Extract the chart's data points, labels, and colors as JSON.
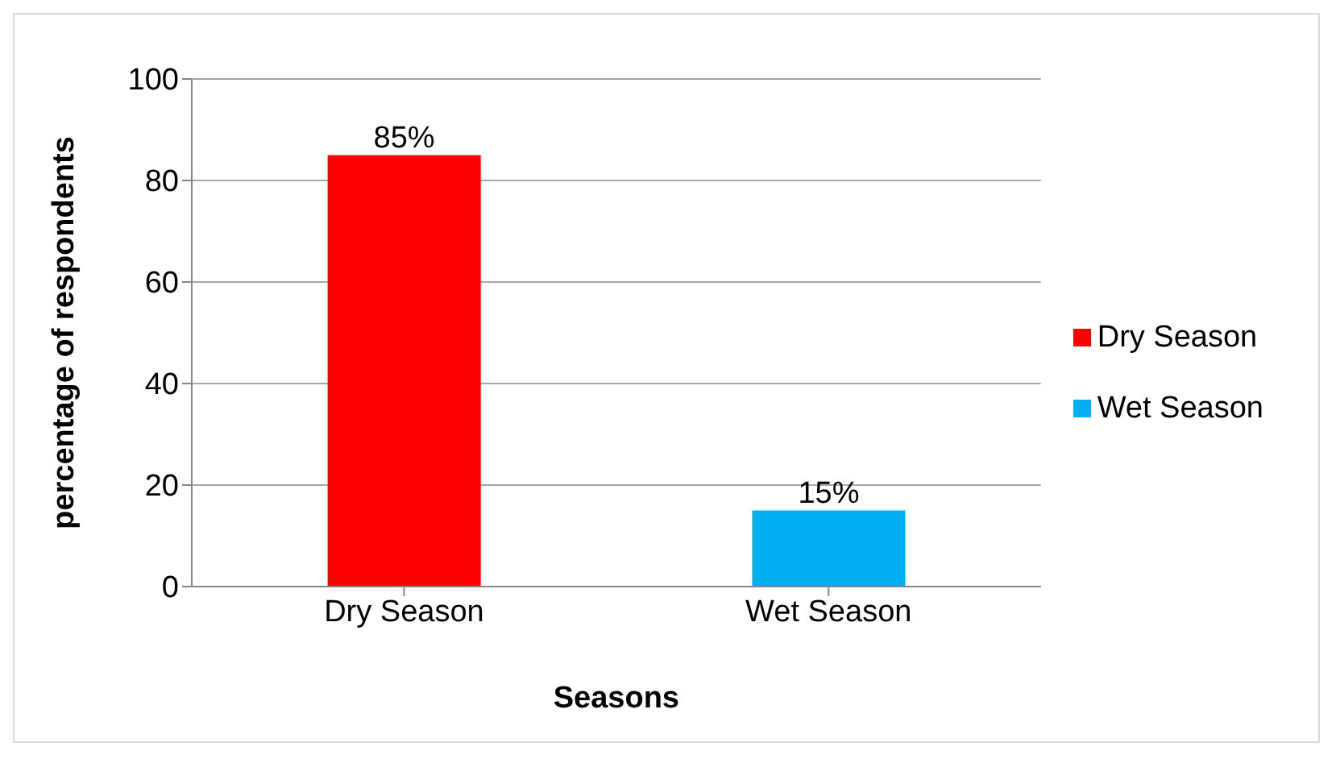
{
  "chart_data": {
    "type": "bar",
    "xlabel": "Seasons",
    "ylabel": "percentage of respondents",
    "categories": [
      "Dry Season",
      "Wet Season"
    ],
    "series": [
      {
        "name": "Dry Season",
        "color": "#ff0000",
        "values": [
          85,
          null
        ],
        "value_labels": [
          "85%",
          null
        ]
      },
      {
        "name": "Wet Season",
        "color": "#00b0f0",
        "values": [
          null,
          15
        ],
        "value_labels": [
          null,
          "15%"
        ]
      }
    ],
    "ylim": [
      0,
      100
    ],
    "yticks": [
      0,
      20,
      40,
      60,
      80,
      100
    ],
    "grid": "y",
    "legend": "right"
  }
}
